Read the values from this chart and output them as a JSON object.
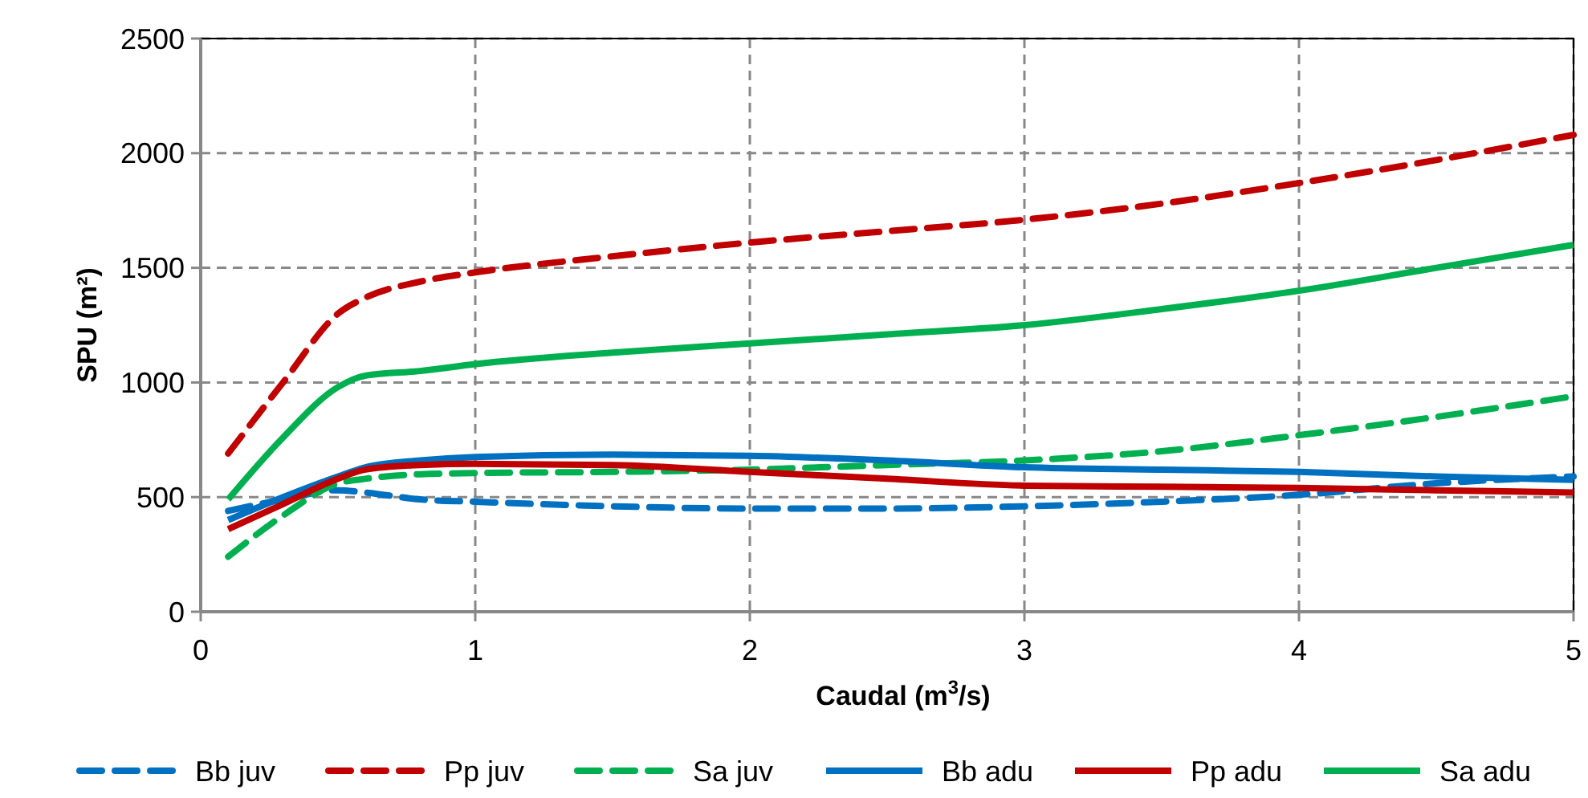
{
  "chart_data": {
    "type": "line",
    "xlabel": "Caudal (m$^{3}$/s)",
    "ylabel": "SPU (m²)",
    "x": [
      0.1,
      0.3,
      0.5,
      0.6,
      0.8,
      1,
      1.5,
      2,
      2.5,
      3,
      3.5,
      4,
      4.5,
      5
    ],
    "xlim": [
      0,
      5
    ],
    "xticks": [
      0,
      1,
      2,
      3,
      4,
      5
    ],
    "ylim": [
      0,
      2500
    ],
    "yticks": [
      0,
      500,
      1000,
      1500,
      2000,
      2500
    ],
    "grid": true,
    "legend": "bottom",
    "marker": "none",
    "series": [
      {
        "name": "Bb juv",
        "color": "#0070c0",
        "line_style": "dashed",
        "values": [
          440,
          490,
          530,
          520,
          490,
          480,
          460,
          450,
          450,
          460,
          480,
          510,
          560,
          590
        ]
      },
      {
        "name": "Pp juv",
        "color": "#c00000",
        "line_style": "dashed",
        "values": [
          690,
          1000,
          1300,
          1370,
          1440,
          1480,
          1550,
          1610,
          1660,
          1710,
          1780,
          1870,
          1970,
          2080
        ]
      },
      {
        "name": "Sa juv",
        "color": "#00b050",
        "line_style": "dashed",
        "values": [
          240,
          420,
          560,
          580,
          600,
          605,
          610,
          620,
          640,
          660,
          700,
          770,
          850,
          940
        ]
      },
      {
        "name": "Bb adu",
        "color": "#0070c0",
        "line_style": "solid",
        "values": [
          400,
          500,
          590,
          630,
          660,
          675,
          685,
          680,
          660,
          630,
          620,
          610,
          590,
          575
        ]
      },
      {
        "name": "Pp adu",
        "color": "#c00000",
        "line_style": "solid",
        "values": [
          360,
          470,
          580,
          620,
          640,
          645,
          640,
          610,
          580,
          550,
          545,
          540,
          530,
          520
        ]
      },
      {
        "name": "Sa adu",
        "color": "#00b050",
        "line_style": "solid",
        "values": [
          490,
          760,
          980,
          1030,
          1050,
          1080,
          1130,
          1170,
          1210,
          1250,
          1320,
          1400,
          1500,
          1600
        ]
      }
    ]
  }
}
